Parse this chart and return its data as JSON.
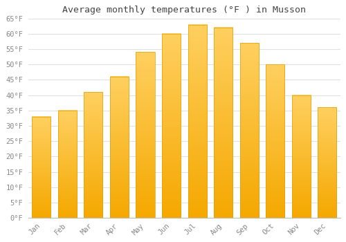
{
  "title": "Average monthly temperatures (°F ) in Musson",
  "months": [
    "Jan",
    "Feb",
    "Mar",
    "Apr",
    "May",
    "Jun",
    "Jul",
    "Aug",
    "Sep",
    "Oct",
    "Nov",
    "Dec"
  ],
  "values": [
    33,
    35,
    41,
    46,
    54,
    60,
    63,
    62,
    57,
    50,
    40,
    36
  ],
  "bar_color_top": "#FFD060",
  "bar_color_bottom": "#F5A800",
  "bar_edge_color": "#E0A000",
  "background_color": "#FFFFFF",
  "plot_bg_color": "#FFFFFF",
  "grid_color": "#E0E0E0",
  "ylim": [
    0,
    65
  ],
  "yticks": [
    0,
    5,
    10,
    15,
    20,
    25,
    30,
    35,
    40,
    45,
    50,
    55,
    60,
    65
  ],
  "title_fontsize": 9.5,
  "tick_fontsize": 7.5,
  "tick_color": "#888888",
  "title_color": "#444444",
  "font_family": "monospace"
}
